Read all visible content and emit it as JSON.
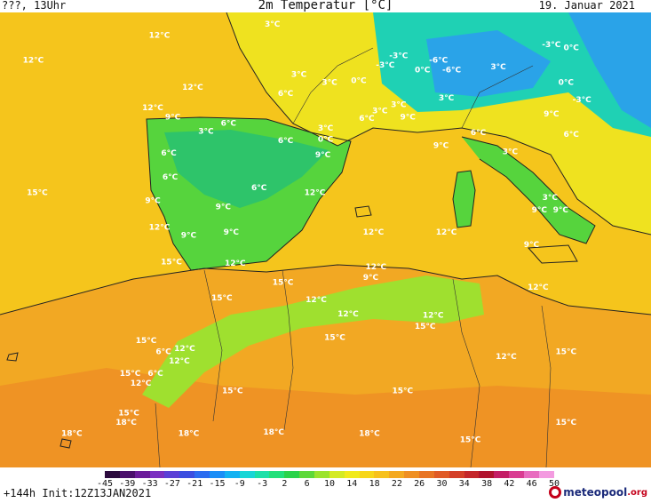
{
  "header": {
    "left": "???, 13Uhr",
    "title": "2m Temperatur [°C]",
    "date": "19. Januar 2021"
  },
  "footer": {
    "run_info": "+144h Init:12Z13JAN2021",
    "logo_name": "meteopool",
    "logo_tld": ".org"
  },
  "legend": {
    "ticks": [
      "-45",
      "-39",
      "-33",
      "-27",
      "-21",
      "-15",
      "-9",
      "-3",
      "2",
      "6",
      "10",
      "14",
      "18",
      "22",
      "26",
      "30",
      "34",
      "38",
      "42",
      "46",
      "50"
    ],
    "colors": [
      "#2b0a3d",
      "#4a0f6b",
      "#6b1b9a",
      "#7a2fc1",
      "#5a3fd6",
      "#3b4ee0",
      "#2b6cf0",
      "#1a8ef7",
      "#13b2f2",
      "#18d6d6",
      "#1ce0a8",
      "#22e07a",
      "#2ad34a",
      "#5ed83a",
      "#9be32e",
      "#d4ea24",
      "#f1ea1c",
      "#f7d61a",
      "#f7c11d",
      "#f4a91f",
      "#ef8f22",
      "#e87424",
      "#e05a26",
      "#d43f28",
      "#c4262a",
      "#b0132e",
      "#c41d66",
      "#d93d92",
      "#e86cbf",
      "#f39be0"
    ]
  },
  "map": {
    "colors": {
      "sea": "#f5c51c",
      "africa": "#f2a823",
      "africa_hot": "#ef9324",
      "iberia": "#56d43d",
      "iberia_cold": "#2ec46a",
      "alps": "#1fd1b4",
      "alps_cold": "#2aa3e8",
      "med_warm": "#efe21f",
      "atlas": "#9fe02f"
    },
    "labels": [
      {
        "text": "3°C",
        "lon": 2.5,
        "lat": 50.5
      },
      {
        "text": "12°C",
        "lon": -6,
        "lat": 49.8
      },
      {
        "text": "12°C",
        "lon": -15.5,
        "lat": 48.2
      },
      {
        "text": "12°C",
        "lon": -3.5,
        "lat": 46.5
      },
      {
        "text": "3°C",
        "lon": 4.5,
        "lat": 47.3
      },
      {
        "text": "3°C",
        "lon": 6.8,
        "lat": 46.8
      },
      {
        "text": "6°C",
        "lon": 3.5,
        "lat": 46.1
      },
      {
        "text": "0°C",
        "lon": 9,
        "lat": 46.9
      },
      {
        "text": "-3°C",
        "lon": 12,
        "lat": 48.5
      },
      {
        "text": "-6°C",
        "lon": 15,
        "lat": 48.2
      },
      {
        "text": "-3°C",
        "lon": 11,
        "lat": 47.9
      },
      {
        "text": "0°C",
        "lon": 13.8,
        "lat": 47.6
      },
      {
        "text": "-6°C",
        "lon": 16,
        "lat": 47.6
      },
      {
        "text": "3°C",
        "lon": 19.5,
        "lat": 47.8
      },
      {
        "text": "-3°C",
        "lon": 23.5,
        "lat": 49.2
      },
      {
        "text": "0°C",
        "lon": 25,
        "lat": 49
      },
      {
        "text": "0°C",
        "lon": 24.6,
        "lat": 46.8
      },
      {
        "text": "-3°C",
        "lon": 25.8,
        "lat": 45.7
      },
      {
        "text": "3°C",
        "lon": 15.6,
        "lat": 45.8
      },
      {
        "text": "3°C",
        "lon": 10.6,
        "lat": 45
      },
      {
        "text": "3°C",
        "lon": 12,
        "lat": 45.4
      },
      {
        "text": "6°C",
        "lon": 9.6,
        "lat": 44.5
      },
      {
        "text": "9°C",
        "lon": 12.7,
        "lat": 44.6
      },
      {
        "text": "9°C",
        "lon": 23.5,
        "lat": 44.8
      },
      {
        "text": "6°C",
        "lon": 25,
        "lat": 43.5
      },
      {
        "text": "12°C",
        "lon": -6.5,
        "lat": 45.2
      },
      {
        "text": "9°C",
        "lon": -5,
        "lat": 44.6
      },
      {
        "text": "6°C",
        "lon": -0.8,
        "lat": 44.2
      },
      {
        "text": "3°C",
        "lon": -2.5,
        "lat": 43.7
      },
      {
        "text": "3°C",
        "lon": 6.5,
        "lat": 43.9
      },
      {
        "text": "0°C",
        "lon": 6.5,
        "lat": 43.2
      },
      {
        "text": "6°C",
        "lon": 18,
        "lat": 43.6
      },
      {
        "text": "9°C",
        "lon": 15.2,
        "lat": 42.8
      },
      {
        "text": "3°C",
        "lon": 20.4,
        "lat": 42.4
      },
      {
        "text": "6°C",
        "lon": 3.5,
        "lat": 43.1
      },
      {
        "text": "6°C",
        "lon": -5.3,
        "lat": 42.3
      },
      {
        "text": "9°C",
        "lon": 6.3,
        "lat": 42.2
      },
      {
        "text": "6°C",
        "lon": -5.2,
        "lat": 40.8
      },
      {
        "text": "6°C",
        "lon": 1.5,
        "lat": 40.1
      },
      {
        "text": "15°C",
        "lon": -15.2,
        "lat": 39.8
      },
      {
        "text": "9°C",
        "lon": -6.5,
        "lat": 39.3
      },
      {
        "text": "12°C",
        "lon": 5.7,
        "lat": 39.8
      },
      {
        "text": "9°C",
        "lon": -1.2,
        "lat": 38.9
      },
      {
        "text": "3°C",
        "lon": 23.4,
        "lat": 39.5
      },
      {
        "text": "9°C",
        "lon": 22.6,
        "lat": 38.7
      },
      {
        "text": "9°C",
        "lon": 24.2,
        "lat": 38.7
      },
      {
        "text": "12°C",
        "lon": -6,
        "lat": 37.6
      },
      {
        "text": "9°C",
        "lon": -3.8,
        "lat": 37.1
      },
      {
        "text": "9°C",
        "lon": -0.6,
        "lat": 37.3
      },
      {
        "text": "12°C",
        "lon": 10.1,
        "lat": 37.3
      },
      {
        "text": "12°C",
        "lon": 15.6,
        "lat": 37.3
      },
      {
        "text": "9°C",
        "lon": 22,
        "lat": 36.5
      },
      {
        "text": "15°C",
        "lon": -5.1,
        "lat": 35.4
      },
      {
        "text": "12°C",
        "lon": -0.3,
        "lat": 35.3
      },
      {
        "text": "12°C",
        "lon": 10.3,
        "lat": 35.1
      },
      {
        "text": "9°C",
        "lon": 9.9,
        "lat": 34.4
      },
      {
        "text": "15°C",
        "lon": 3.3,
        "lat": 34.1
      },
      {
        "text": "12°C",
        "lon": 22.5,
        "lat": 33.8
      },
      {
        "text": "15°C",
        "lon": -1.3,
        "lat": 33.1
      },
      {
        "text": "12°C",
        "lon": 5.8,
        "lat": 33
      },
      {
        "text": "12°C",
        "lon": 8.2,
        "lat": 32.1
      },
      {
        "text": "12°C",
        "lon": 14.6,
        "lat": 32
      },
      {
        "text": "15°C",
        "lon": 14,
        "lat": 31.3
      },
      {
        "text": "15°C",
        "lon": -7,
        "lat": 30.4
      },
      {
        "text": "15°C",
        "lon": 7.2,
        "lat": 30.6
      },
      {
        "text": "6°C",
        "lon": -5.7,
        "lat": 29.7
      },
      {
        "text": "12°C",
        "lon": -4.1,
        "lat": 29.9
      },
      {
        "text": "12°C",
        "lon": -4.5,
        "lat": 29.1
      },
      {
        "text": "12°C",
        "lon": 20.1,
        "lat": 29.4
      },
      {
        "text": "15°C",
        "lon": 24.6,
        "lat": 29.7
      },
      {
        "text": "15°C",
        "lon": -8.2,
        "lat": 28.3
      },
      {
        "text": "6°C",
        "lon": -6.3,
        "lat": 28.3
      },
      {
        "text": "12°C",
        "lon": -7.4,
        "lat": 27.7
      },
      {
        "text": "15°C",
        "lon": -0.5,
        "lat": 27.2
      },
      {
        "text": "15°C",
        "lon": 12.3,
        "lat": 27.2
      },
      {
        "text": "15°C",
        "lon": -8.3,
        "lat": 25.8
      },
      {
        "text": "18°C",
        "lon": -8.5,
        "lat": 25.2
      },
      {
        "text": "18°C",
        "lon": -12.6,
        "lat": 24.5
      },
      {
        "text": "18°C",
        "lon": -3.8,
        "lat": 24.5
      },
      {
        "text": "18°C",
        "lon": 2.6,
        "lat": 24.6
      },
      {
        "text": "18°C",
        "lon": 9.8,
        "lat": 24.5
      },
      {
        "text": "15°C",
        "lon": 24.6,
        "lat": 25.2
      },
      {
        "text": "15°C",
        "lon": 17.4,
        "lat": 24.1
      }
    ]
  }
}
